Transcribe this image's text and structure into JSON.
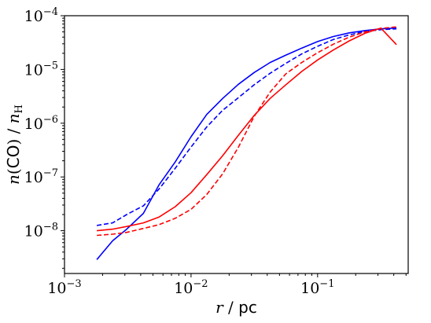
{
  "chart_data": {
    "type": "line",
    "xlabel": "r / pc",
    "ylabel": "n(CO) / nH",
    "xscale": "log",
    "yscale": "log",
    "xlim": [
      0.001,
      0.52
    ],
    "ylim": [
      1.6e-09,
      0.0001
    ],
    "x_ticks": [
      {
        "value": 0.001,
        "base": "10",
        "exp": "−3"
      },
      {
        "value": 0.01,
        "base": "10",
        "exp": "−2"
      },
      {
        "value": 0.1,
        "base": "10",
        "exp": "−1"
      }
    ],
    "y_ticks": [
      {
        "value": 1e-08,
        "base": "10",
        "exp": "−8"
      },
      {
        "value": 1e-07,
        "base": "10",
        "exp": "−7"
      },
      {
        "value": 1e-06,
        "base": "10",
        "exp": "−6"
      },
      {
        "value": 1e-05,
        "base": "10",
        "exp": "−5"
      },
      {
        "value": 0.0001,
        "base": "10",
        "exp": "−4"
      }
    ],
    "grid": false,
    "legend": "none",
    "series": [
      {
        "color": "#0000ff",
        "style": "solid",
        "x": [
          0.0018,
          0.0024,
          0.0031,
          0.0042,
          0.0056,
          0.0075,
          0.01,
          0.0133,
          0.0178,
          0.0237,
          0.0316,
          0.0422,
          0.0562,
          0.075,
          0.1,
          0.133,
          0.178,
          0.237,
          0.316,
          0.42
        ],
        "y": [
          2.9e-09,
          6.5e-09,
          1.07e-08,
          2.1e-08,
          7.2e-08,
          1.9e-07,
          5.6e-07,
          1.45e-06,
          2.9e-06,
          5.3e-06,
          8.8e-06,
          1.35e-05,
          1.85e-05,
          2.5e-05,
          3.3e-05,
          4.1e-05,
          4.8e-05,
          5.3e-05,
          5.7e-05,
          5.9e-05
        ]
      },
      {
        "color": "#0000ff",
        "style": "dashed",
        "x": [
          0.0018,
          0.0024,
          0.0031,
          0.0042,
          0.0056,
          0.0075,
          0.01,
          0.0133,
          0.0178,
          0.0237,
          0.0316,
          0.0422,
          0.0562,
          0.075,
          0.1,
          0.133,
          0.178,
          0.237,
          0.316,
          0.42
        ],
        "y": [
          1.25e-08,
          1.4e-08,
          2e-08,
          2.9e-08,
          6e-08,
          1.45e-07,
          3.6e-07,
          8.5e-07,
          1.75e-06,
          3e-06,
          5.2e-06,
          8.5e-06,
          1.3e-05,
          1.95e-05,
          2.7e-05,
          3.6e-05,
          4.4e-05,
          5.1e-05,
          5.5e-05,
          5.7e-05
        ]
      },
      {
        "color": "#ff0000",
        "style": "solid",
        "x": [
          0.0018,
          0.0024,
          0.0031,
          0.0042,
          0.0056,
          0.0075,
          0.01,
          0.0133,
          0.0178,
          0.0237,
          0.0316,
          0.0422,
          0.0562,
          0.075,
          0.1,
          0.133,
          0.178,
          0.237,
          0.316,
          0.42
        ],
        "y": [
          1e-08,
          1.07e-08,
          1.2e-08,
          1.4e-08,
          1.8e-08,
          2.8e-08,
          5.1e-08,
          1.1e-07,
          2.5e-07,
          6e-07,
          1.4e-06,
          2.9e-06,
          5.2e-06,
          9.2e-06,
          1.5e-05,
          2.3e-05,
          3.4e-05,
          4.7e-05,
          5.9e-05,
          2.9e-05
        ]
      },
      {
        "color": "#ff0000",
        "style": "dashed",
        "x": [
          0.0018,
          0.0024,
          0.0031,
          0.0042,
          0.0056,
          0.0075,
          0.01,
          0.0133,
          0.0178,
          0.0237,
          0.0316,
          0.0422,
          0.0562,
          0.075,
          0.1,
          0.133,
          0.178,
          0.237,
          0.316,
          0.42
        ],
        "y": [
          8.2e-09,
          8.6e-09,
          9.3e-09,
          1.1e-08,
          1.3e-08,
          1.7e-08,
          2.5e-08,
          4.7e-08,
          1.15e-07,
          3.6e-07,
          1.35e-06,
          3.8e-06,
          8.3e-06,
          1.35e-05,
          2.05e-05,
          2.95e-05,
          4e-05,
          5e-05,
          5.8e-05,
          6.2e-05
        ]
      }
    ]
  }
}
